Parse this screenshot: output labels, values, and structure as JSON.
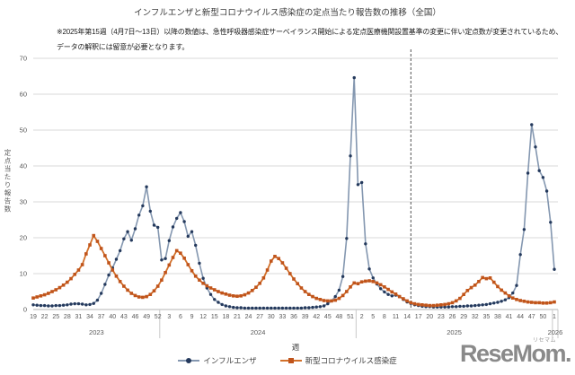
{
  "title": "インフルエンザと新型コロナウイルス感染症の定点当たり報告数の推移（全国）",
  "note_line1": "※2025年第15週（4月7日～13日）以降の数値は、急性呼吸器感染症サーベイランス開始による定点医療機関設置基準の変更に伴い定点数が変更されているため、",
  "note_line2": "データの解釈には留意が必要となります。",
  "logo": {
    "text": "ReseMom.",
    "ruby": "リセマム",
    "color": "#8a8a8a"
  },
  "chart_data": {
    "type": "line",
    "title": "インフルエンザと新型コロナウイルス感染症の定点当たり報告数の推移（全国）",
    "xlabel": "週",
    "ylabel": "定点当たり報告数",
    "ylim": [
      0,
      70
    ],
    "yticks": [
      0,
      10,
      20,
      30,
      40,
      50,
      60,
      70
    ],
    "grid": true,
    "legend_position": "bottom",
    "x_first_week": 19,
    "tick_interval": 3,
    "years": [
      {
        "label": "2023",
        "weeks": 34
      },
      {
        "label": "2024",
        "weeks": 52
      },
      {
        "label": "2025",
        "weeks": 52
      },
      {
        "label": "2026",
        "weeks": 1
      }
    ],
    "tick_labels": [
      "19",
      "22",
      "25",
      "28",
      "31",
      "34",
      "37",
      "40",
      "43",
      "46",
      "49",
      "52",
      "3",
      "6",
      "9",
      "12",
      "15",
      "18",
      "21",
      "24",
      "27",
      "30",
      "33",
      "36",
      "39",
      "42",
      "45",
      "48",
      "51",
      "2",
      "5",
      "8",
      "11",
      "14",
      "17",
      "20",
      "23",
      "26",
      "29",
      "32",
      "35",
      "38",
      "41",
      "44",
      "47",
      "50",
      "1"
    ],
    "dashed_vline": {
      "year": "2025",
      "week": 15
    },
    "series": [
      {
        "name": "インフルエンザ",
        "marker": "circle",
        "line_color": "#8497b0",
        "marker_color": "#24395c",
        "values": [
          1.3,
          1.2,
          1.1,
          1.1,
          1.0,
          1.0,
          1.1,
          1.1,
          1.2,
          1.3,
          1.5,
          1.6,
          1.6,
          1.5,
          1.3,
          1.4,
          1.7,
          2.6,
          4.5,
          7.0,
          9.6,
          11.6,
          14.0,
          16.4,
          19.7,
          21.7,
          19.3,
          22.5,
          26.3,
          28.9,
          34.2,
          27.4,
          23.5,
          22.9,
          13.8,
          14.2,
          19.2,
          23.0,
          25.4,
          27.0,
          24.5,
          20.4,
          21.7,
          17.9,
          12.9,
          8.7,
          6.0,
          4.2,
          2.8,
          2.0,
          1.4,
          1.0,
          0.8,
          0.6,
          0.5,
          0.5,
          0.4,
          0.4,
          0.4,
          0.4,
          0.4,
          0.4,
          0.4,
          0.4,
          0.4,
          0.4,
          0.4,
          0.4,
          0.4,
          0.4,
          0.4,
          0.4,
          0.5,
          0.5,
          0.6,
          0.7,
          0.8,
          1.0,
          1.6,
          2.4,
          3.6,
          5.4,
          9.2,
          19.8,
          42.8,
          64.6,
          34.8,
          35.4,
          18.3,
          11.3,
          8.8,
          7.1,
          5.8,
          4.9,
          4.2,
          3.8,
          4.0,
          3.6,
          2.8,
          2.1,
          1.7,
          1.3,
          1.1,
          0.9,
          0.8,
          0.8,
          0.7,
          0.7,
          0.7,
          0.7,
          0.7,
          0.8,
          0.8,
          0.9,
          0.9,
          1.0,
          1.0,
          1.1,
          1.2,
          1.3,
          1.4,
          1.6,
          1.8,
          2.0,
          2.3,
          2.7,
          3.3,
          4.6,
          6.7,
          15.3,
          22.3,
          38.0,
          51.5,
          45.3,
          38.7,
          36.8,
          33.0,
          24.3,
          11.2
        ]
      },
      {
        "name": "新型コロナウイルス感染症",
        "marker": "square",
        "line_color": "#d2702a",
        "marker_color": "#c0541b",
        "values": [
          3.2,
          3.5,
          3.8,
          4.1,
          4.5,
          5.0,
          5.5,
          6.1,
          6.8,
          7.6,
          8.6,
          9.8,
          11.0,
          12.5,
          15.5,
          18.0,
          20.6,
          19.0,
          17.0,
          15.0,
          13.0,
          11.0,
          9.3,
          7.8,
          6.5,
          5.4,
          4.5,
          3.9,
          3.5,
          3.4,
          3.6,
          4.2,
          5.2,
          6.5,
          8.2,
          10.3,
          12.4,
          14.5,
          16.4,
          15.7,
          14.3,
          12.5,
          10.8,
          9.3,
          8.2,
          7.3,
          6.6,
          6.0,
          5.5,
          5.0,
          4.6,
          4.3,
          4.0,
          3.8,
          3.7,
          3.8,
          4.1,
          4.6,
          5.3,
          6.2,
          7.3,
          8.8,
          11.0,
          13.5,
          14.8,
          14.2,
          13.0,
          11.5,
          10.0,
          8.5,
          7.2,
          6.0,
          5.0,
          4.2,
          3.6,
          3.1,
          2.8,
          2.5,
          2.4,
          2.4,
          2.6,
          3.1,
          3.9,
          5.0,
          6.3,
          7.4,
          7.2,
          7.7,
          7.9,
          8.0,
          7.8,
          7.4,
          6.9,
          6.3,
          5.6,
          4.9,
          4.3,
          3.6,
          3.0,
          2.4,
          1.9,
          1.6,
          1.4,
          1.3,
          1.2,
          1.1,
          1.1,
          1.2,
          1.3,
          1.4,
          1.6,
          1.9,
          2.4,
          3.1,
          4.2,
          5.3,
          6.1,
          6.8,
          7.8,
          8.9,
          8.6,
          8.8,
          7.6,
          6.4,
          5.4,
          4.6,
          3.8,
          3.2,
          2.8,
          2.5,
          2.3,
          2.1,
          2.0,
          1.9,
          1.9,
          1.8,
          1.8,
          1.9,
          2.1
        ]
      }
    ]
  }
}
